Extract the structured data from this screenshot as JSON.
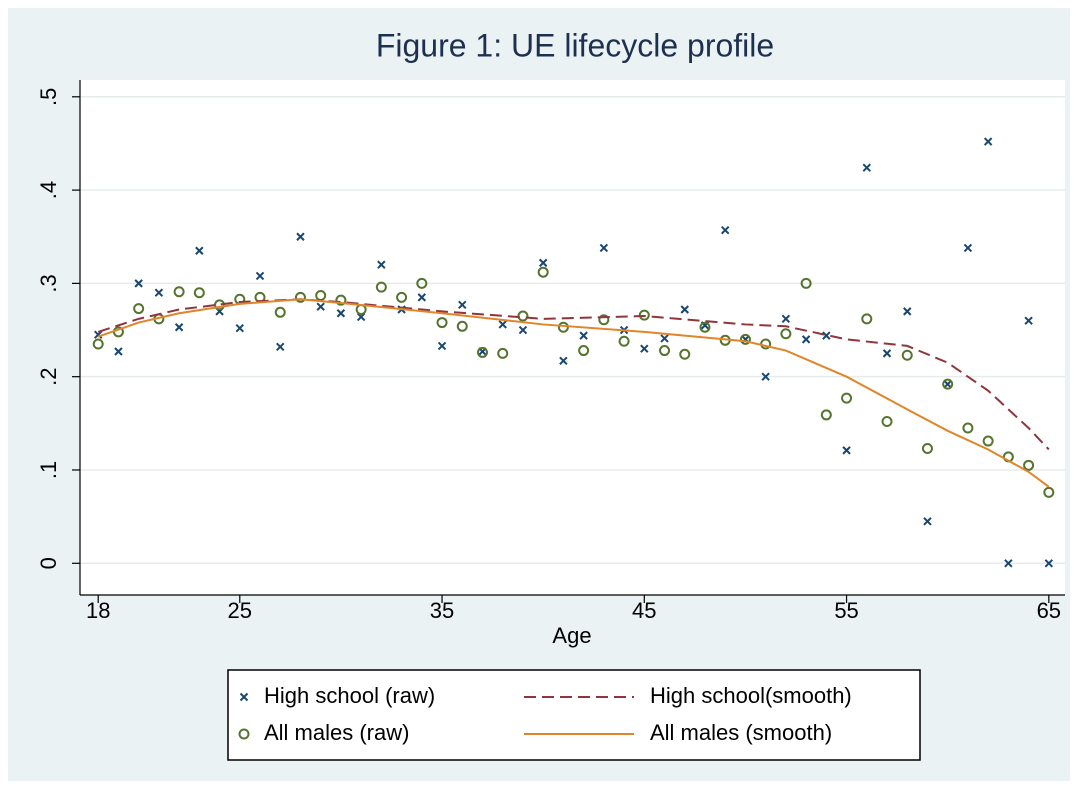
{
  "chart_data": {
    "type": "scatter",
    "title": "Figure 1: UE lifecycle profile",
    "x_label": "Age",
    "xlim": [
      17.1,
      65.8
    ],
    "xticks": [
      18,
      25,
      35,
      45,
      55,
      65
    ],
    "ylim": [
      -0.034,
      0.518
    ],
    "yticks": [
      0,
      {
        "value": 0.1,
        "label": ".1"
      },
      {
        "value": 0.2,
        "label": ".2"
      },
      {
        "value": 0.3,
        "label": ".3"
      },
      {
        "value": 0.4,
        "label": ".4"
      },
      {
        "value": 0.5,
        "label": ".5"
      }
    ],
    "grid": true,
    "legend_position": "bottom",
    "series": [
      {
        "name": "High school (raw)",
        "color": "#1a476f",
        "style": "x",
        "x": [
          18,
          19,
          20,
          21,
          22,
          23,
          24,
          25,
          26,
          27,
          28,
          29,
          30,
          31,
          32,
          33,
          34,
          35,
          36,
          37,
          38,
          39,
          40,
          41,
          42,
          43,
          44,
          45,
          46,
          47,
          48,
          49,
          50,
          51,
          52,
          53,
          54,
          55,
          56,
          57,
          58,
          59,
          60,
          61,
          62,
          63,
          64,
          65
        ],
        "values": [
          0.245,
          0.227,
          0.3,
          0.29,
          0.253,
          0.335,
          0.27,
          0.252,
          0.308,
          0.232,
          0.35,
          0.275,
          0.268,
          0.264,
          0.32,
          0.272,
          0.285,
          0.233,
          0.277,
          0.227,
          0.256,
          0.25,
          0.322,
          0.217,
          0.244,
          0.338,
          0.25,
          0.23,
          0.241,
          0.272,
          0.255,
          0.357,
          0.24,
          0.2,
          0.262,
          0.24,
          0.244,
          0.121,
          0.424,
          0.225,
          0.27,
          0.045,
          0.192,
          0.338,
          0.452,
          0,
          0.26,
          0
        ]
      },
      {
        "name": "All males (raw)",
        "color": "#55752f",
        "style": "circle",
        "x": [
          18,
          19,
          20,
          21,
          22,
          23,
          24,
          25,
          26,
          27,
          28,
          29,
          30,
          31,
          32,
          33,
          34,
          35,
          36,
          37,
          38,
          39,
          40,
          41,
          42,
          43,
          44,
          45,
          46,
          47,
          48,
          49,
          50,
          51,
          52,
          53,
          54,
          55,
          56,
          57,
          58,
          59,
          60,
          61,
          62,
          63,
          64,
          65
        ],
        "values": [
          0.235,
          0.248,
          0.273,
          0.262,
          0.291,
          0.29,
          0.277,
          0.283,
          0.285,
          0.269,
          0.285,
          0.287,
          0.282,
          0.272,
          0.296,
          0.285,
          0.3,
          0.258,
          0.254,
          0.226,
          0.225,
          0.265,
          0.312,
          0.253,
          0.228,
          0.261,
          0.238,
          0.266,
          0.228,
          0.224,
          0.253,
          0.239,
          0.24,
          0.235,
          0.246,
          0.3,
          0.159,
          0.177,
          0.262,
          0.152,
          0.223,
          0.123,
          0.192,
          0.145,
          0.131,
          0.114,
          0.105,
          0.076
        ]
      },
      {
        "name": "High school(smooth)",
        "color": "#90353b",
        "style": "dashed",
        "x": [
          18,
          20,
          22,
          25,
          28,
          30,
          35,
          40,
          45,
          50,
          52,
          55,
          58,
          60,
          62,
          64,
          65
        ],
        "values": [
          0.248,
          0.262,
          0.272,
          0.28,
          0.283,
          0.28,
          0.27,
          0.262,
          0.265,
          0.256,
          0.254,
          0.24,
          0.233,
          0.215,
          0.185,
          0.145,
          0.122
        ]
      },
      {
        "name": "All males (smooth)",
        "color": "#e0852a",
        "style": "solid",
        "x": [
          18,
          20,
          22,
          25,
          28,
          30,
          35,
          40,
          45,
          50,
          52,
          55,
          58,
          60,
          62,
          64,
          65
        ],
        "values": [
          0.243,
          0.258,
          0.268,
          0.278,
          0.283,
          0.279,
          0.268,
          0.256,
          0.248,
          0.238,
          0.228,
          0.2,
          0.165,
          0.142,
          0.122,
          0.098,
          0.082
        ]
      }
    ]
  }
}
